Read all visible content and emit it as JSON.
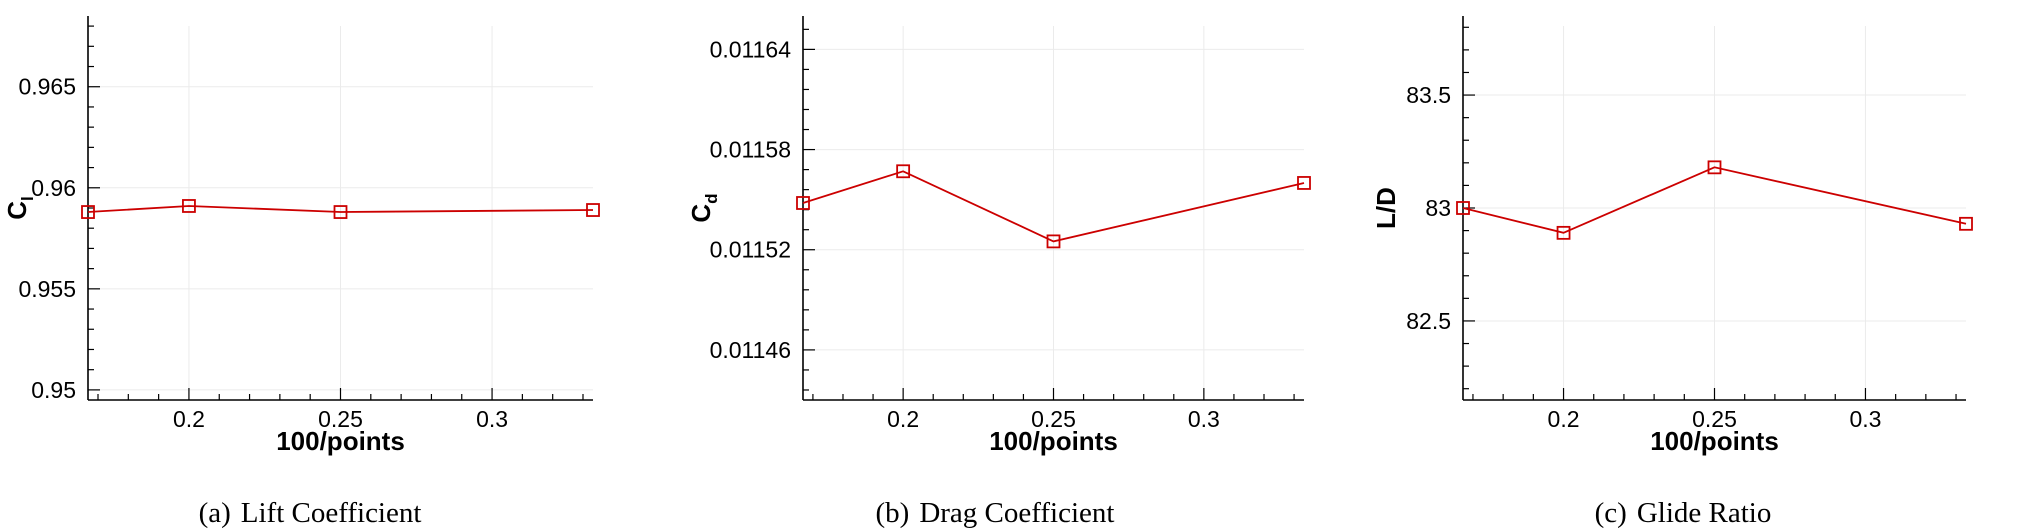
{
  "chart_data": [
    {
      "type": "line",
      "caption_tag": "(a)",
      "caption": "Lift Coefficient",
      "xlabel": "100/points",
      "ylabel_main": "C",
      "ylabel_sub": "l",
      "xlim": [
        0.1667,
        0.3333
      ],
      "ylim": [
        0.9495,
        0.9685
      ],
      "xticks": [
        "0.2",
        "0.25",
        "0.3"
      ],
      "xtick_values": [
        0.2,
        0.25,
        0.3
      ],
      "yticks": [
        "0.95",
        "0.955",
        "0.96",
        "0.965"
      ],
      "ytick_values": [
        0.95,
        0.955,
        0.96,
        0.965
      ],
      "series": [
        {
          "x": [
            0.1667,
            0.2,
            0.25,
            0.3333
          ],
          "y": [
            0.9588,
            0.9591,
            0.9588,
            0.9589
          ]
        }
      ]
    },
    {
      "type": "line",
      "caption_tag": "(b)",
      "caption": "Drag Coefficient",
      "xlabel": "100/points",
      "ylabel_main": "C",
      "ylabel_sub": "d",
      "xlim": [
        0.1667,
        0.3333
      ],
      "ylim": [
        0.01143,
        0.01166
      ],
      "xticks": [
        "0.2",
        "0.25",
        "0.3"
      ],
      "xtick_values": [
        0.2,
        0.25,
        0.3
      ],
      "yticks": [
        "0.01146",
        "0.01152",
        "0.01158",
        "0.01164"
      ],
      "ytick_values": [
        0.01146,
        0.01152,
        0.01158,
        0.01164
      ],
      "series": [
        {
          "x": [
            0.1667,
            0.2,
            0.25,
            0.3333
          ],
          "y": [
            0.011548,
            0.011567,
            0.011525,
            0.01156
          ]
        }
      ]
    },
    {
      "type": "line",
      "caption_tag": "(c)",
      "caption": "Glide Ratio",
      "xlabel": "100/points",
      "ylabel_main": "L/D",
      "ylabel_sub": "",
      "xlim": [
        0.1667,
        0.3333
      ],
      "ylim": [
        82.15,
        83.85
      ],
      "xticks": [
        "0.2",
        "0.25",
        "0.3"
      ],
      "xtick_values": [
        0.2,
        0.25,
        0.3
      ],
      "yticks": [
        "82.5",
        "83",
        "83.5"
      ],
      "ytick_values": [
        82.5,
        83,
        83.5
      ],
      "series": [
        {
          "x": [
            0.1667,
            0.2,
            0.25,
            0.3333
          ],
          "y": [
            83.0,
            82.89,
            83.18,
            82.93
          ]
        }
      ]
    }
  ]
}
